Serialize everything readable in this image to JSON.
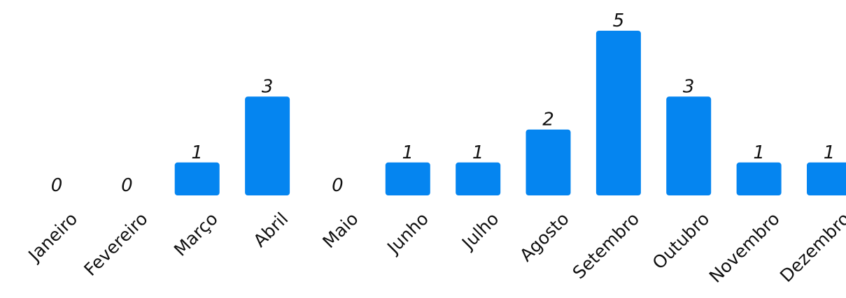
{
  "chart_data": {
    "type": "bar",
    "title": "",
    "xlabel": "",
    "ylabel": "",
    "categories": [
      "Janeiro",
      "Fevereiro",
      "Março",
      "Abril",
      "Maio",
      "Junho",
      "Julho",
      "Agosto",
      "Setembro",
      "Outubro",
      "Novembro",
      "Dezembro"
    ],
    "values": [
      0,
      0,
      1,
      3,
      0,
      1,
      1,
      2,
      5,
      3,
      1,
      1
    ],
    "ylim": [
      0,
      5
    ],
    "grid": false,
    "legend": "none",
    "bar_color": "#0585f0"
  }
}
